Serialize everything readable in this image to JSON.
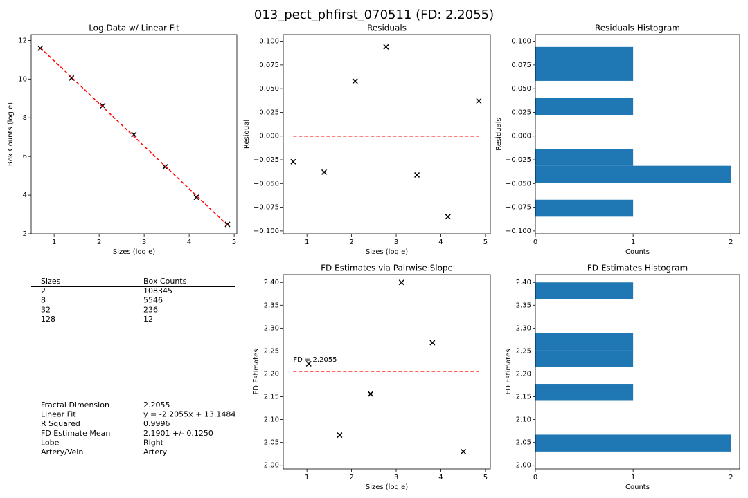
{
  "title": "013_pect_phfirst_070511 (FD: 2.2055)",
  "chart_data": [
    {
      "type": "scatter",
      "title": "Log Data w/ Linear Fit",
      "xlabel": "Sizes (log e)",
      "ylabel": "Box Counts (log e)",
      "x": [
        0.693,
        1.386,
        2.079,
        2.773,
        3.466,
        4.159,
        4.852
      ],
      "series": [
        {
          "values": [
            11.593,
            10.053,
            8.621,
            7.127,
            5.463,
            3.891,
            2.484
          ],
          "color": "#000000",
          "marker": "x"
        },
        {
          "values": [
            11.62,
            10.092,
            8.563,
            7.033,
            5.504,
            3.976,
            2.447
          ],
          "color": "#ff0000",
          "linestyle": "dashed"
        }
      ],
      "xlim": [
        0.49,
        5.06
      ],
      "xticks": [
        1,
        2,
        3,
        4,
        5
      ],
      "ylim": [
        2.0,
        12.3
      ],
      "yticks": [
        2,
        4,
        6,
        8,
        10,
        12
      ]
    },
    {
      "type": "scatter",
      "title": "Residuals",
      "xlabel": "Sizes (log e)",
      "ylabel": "Residual",
      "x": [
        0.693,
        1.386,
        2.079,
        2.773,
        3.466,
        4.159,
        4.852
      ],
      "series": [
        {
          "values": [
            -0.027,
            -0.038,
            0.058,
            0.094,
            -0.041,
            -0.085,
            0.037
          ],
          "color": "#000000",
          "marker": "x"
        },
        {
          "values": [
            0,
            0,
            0,
            0,
            0,
            0,
            0
          ],
          "color": "#ff0000",
          "linestyle": "dashed"
        }
      ],
      "xlim": [
        0.47,
        5.11
      ],
      "xticks": [
        1,
        2,
        3,
        4,
        5
      ],
      "ylim": [
        -0.103,
        0.107
      ],
      "yticks": [
        {
          "value": -0.1,
          "label": "−0.100"
        },
        {
          "value": -0.075,
          "label": "−0.075"
        },
        {
          "value": -0.05,
          "label": "−0.050"
        },
        {
          "value": -0.025,
          "label": "−0.025"
        },
        {
          "value": 0,
          "label": "0.000"
        },
        {
          "value": 0.025,
          "label": "0.025"
        },
        {
          "value": 0.05,
          "label": "0.050"
        },
        {
          "value": 0.075,
          "label": "0.075"
        },
        {
          "value": 0.1,
          "label": "0.100"
        }
      ]
    },
    {
      "type": "histogram",
      "orientation": "horizontal",
      "title": "Residuals Histogram",
      "xlabel": "Counts",
      "ylabel": "Residuals",
      "bins": [
        -0.085,
        -0.0671,
        -0.0492,
        -0.0313,
        -0.0134,
        0.0045,
        0.0224,
        0.0403,
        0.0582,
        0.0761,
        0.094
      ],
      "values": [
        1,
        0,
        2,
        1,
        0,
        0,
        1,
        0,
        1,
        1
      ],
      "color": "#1f77b4",
      "xlim": [
        0,
        2.09
      ],
      "xticks": [
        0,
        1,
        2
      ],
      "ylim": [
        -0.103,
        0.107
      ],
      "yticks": [
        {
          "value": -0.1,
          "label": "−0.100"
        },
        {
          "value": -0.075,
          "label": "−0.075"
        },
        {
          "value": -0.05,
          "label": "−0.050"
        },
        {
          "value": -0.025,
          "label": "−0.025"
        },
        {
          "value": 0,
          "label": "0.000"
        },
        {
          "value": 0.025,
          "label": "0.025"
        },
        {
          "value": 0.05,
          "label": "0.050"
        },
        {
          "value": 0.075,
          "label": "0.075"
        },
        {
          "value": 0.1,
          "label": "0.100"
        }
      ]
    },
    {
      "type": "scatter",
      "title": "FD Estimates via Pairwise Slope",
      "xlabel": "Sizes (log e)",
      "ylabel": "FD Estimates",
      "x": [
        1.04,
        1.733,
        2.426,
        3.119,
        3.812,
        4.505
      ],
      "series": [
        {
          "values": [
            2.222,
            2.066,
            2.156,
            2.4,
            2.268,
            2.03
          ],
          "color": "#000000",
          "marker": "x"
        },
        {
          "x": [
            0.693,
            4.852
          ],
          "values": [
            2.2055,
            2.2055
          ],
          "color": "#ff0000",
          "linestyle": "dashed"
        }
      ],
      "annotation": "FD = 2.2055",
      "xlim": [
        0.47,
        5.11
      ],
      "xticks": [
        1,
        2,
        3,
        4,
        5
      ],
      "ylim": [
        1.992,
        2.417
      ],
      "yticks": [
        {
          "value": 2.0,
          "label": "2.00"
        },
        {
          "value": 2.05,
          "label": "2.05"
        },
        {
          "value": 2.1,
          "label": "2.10"
        },
        {
          "value": 2.15,
          "label": "2.15"
        },
        {
          "value": 2.2,
          "label": "2.20"
        },
        {
          "value": 2.25,
          "label": "2.25"
        },
        {
          "value": 2.3,
          "label": "2.30"
        },
        {
          "value": 2.35,
          "label": "2.35"
        },
        {
          "value": 2.4,
          "label": "2.40"
        }
      ]
    },
    {
      "type": "histogram",
      "orientation": "horizontal",
      "title": "FD Estimates Histogram",
      "xlabel": "Counts",
      "ylabel": "FD Estimates",
      "bins": [
        2.03,
        2.067,
        2.104,
        2.141,
        2.178,
        2.215,
        2.252,
        2.289,
        2.326,
        2.363,
        2.4
      ],
      "values": [
        2,
        0,
        0,
        1,
        0,
        1,
        1,
        0,
        0,
        1
      ],
      "color": "#1f77b4",
      "xlim": [
        0,
        2.09
      ],
      "xticks": [
        0,
        1,
        2
      ],
      "ylim": [
        1.992,
        2.417
      ],
      "yticks": [
        {
          "value": 2.0,
          "label": "2.00"
        },
        {
          "value": 2.05,
          "label": "2.05"
        },
        {
          "value": 2.1,
          "label": "2.10"
        },
        {
          "value": 2.15,
          "label": "2.15"
        },
        {
          "value": 2.2,
          "label": "2.20"
        },
        {
          "value": 2.25,
          "label": "2.25"
        },
        {
          "value": 2.3,
          "label": "2.30"
        },
        {
          "value": 2.35,
          "label": "2.35"
        },
        {
          "value": 2.4,
          "label": "2.40"
        }
      ]
    }
  ],
  "table": {
    "columns": [
      "Sizes",
      "Box Counts"
    ],
    "rows": [
      [
        2,
        108345
      ],
      [
        8,
        5546
      ],
      [
        32,
        236
      ],
      [
        128,
        12
      ]
    ]
  },
  "stats": [
    [
      "Fractal Dimension",
      "2.2055"
    ],
    [
      "Linear Fit",
      "y = -2.2055x + 13.1484"
    ],
    [
      "R Squared",
      "0.9996"
    ],
    [
      "FD Estimate Mean",
      "2.1901 +/- 0.1250"
    ],
    [
      "Lobe",
      "Right"
    ],
    [
      "Artery/Vein",
      "Artery"
    ]
  ]
}
